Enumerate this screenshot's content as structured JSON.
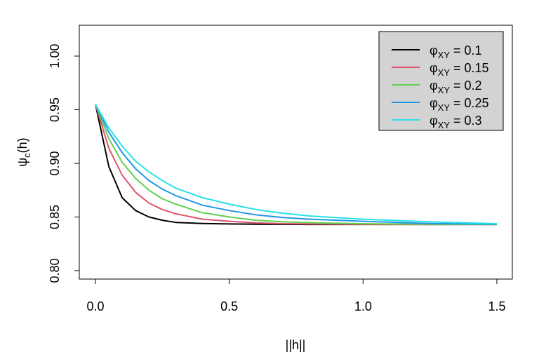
{
  "chart_data": {
    "type": "line",
    "xlabel": "||h||",
    "ylabel": {
      "main": "ψ",
      "sub": "c",
      "suffix": "(h)"
    },
    "xlim": [
      0,
      1.5
    ],
    "ylim": [
      0.8,
      1.0
    ],
    "xticks": [
      {
        "value": 0,
        "label": "0.0"
      },
      {
        "value": 0.5,
        "label": "0.5"
      },
      {
        "value": 1.0,
        "label": "1.0"
      },
      {
        "value": 1.5,
        "label": "1.5"
      }
    ],
    "yticks": [
      {
        "value": 0.8,
        "label": "0.80"
      },
      {
        "value": 0.85,
        "label": "0.85"
      },
      {
        "value": 0.9,
        "label": "0.90"
      },
      {
        "value": 0.95,
        "label": "0.95"
      },
      {
        "value": 1.0,
        "label": "1.00"
      }
    ],
    "grid": false,
    "legend_position": "top-right",
    "legend_background": "#d3d3d3",
    "x": [
      0,
      0.05,
      0.1,
      0.15,
      0.2,
      0.25,
      0.3,
      0.4,
      0.5,
      0.6,
      0.7,
      0.8,
      1.0,
      1.25,
      1.5
    ],
    "series": [
      {
        "name": "0.1",
        "color": "#000000",
        "values": [
          0.955,
          0.897,
          0.868,
          0.856,
          0.85,
          0.847,
          0.845,
          0.844,
          0.8435,
          0.8433,
          0.8432,
          0.8431,
          0.8431,
          0.8431,
          0.8431
        ]
      },
      {
        "name": "0.15",
        "color": "#df536b",
        "values": [
          0.955,
          0.914,
          0.889,
          0.873,
          0.863,
          0.857,
          0.853,
          0.848,
          0.846,
          0.8445,
          0.8438,
          0.8435,
          0.8432,
          0.8431,
          0.8431
        ]
      },
      {
        "name": "0.2",
        "color": "#61d04f",
        "values": [
          0.955,
          0.923,
          0.901,
          0.886,
          0.875,
          0.867,
          0.862,
          0.854,
          0.85,
          0.847,
          0.8455,
          0.8447,
          0.8437,
          0.8433,
          0.8431
        ]
      },
      {
        "name": "0.25",
        "color": "#2297e6",
        "values": [
          0.955,
          0.929,
          0.91,
          0.895,
          0.884,
          0.876,
          0.87,
          0.861,
          0.856,
          0.852,
          0.8495,
          0.848,
          0.846,
          0.844,
          0.8433
        ]
      },
      {
        "name": "0.3",
        "color": "#28e2e5",
        "values": [
          0.955,
          0.933,
          0.916,
          0.902,
          0.892,
          0.884,
          0.877,
          0.868,
          0.862,
          0.857,
          0.8535,
          0.851,
          0.848,
          0.8455,
          0.8438
        ]
      }
    ],
    "legend_label_prefix": "φ",
    "legend_label_sub": "XY",
    "legend_label_eq": " = "
  }
}
